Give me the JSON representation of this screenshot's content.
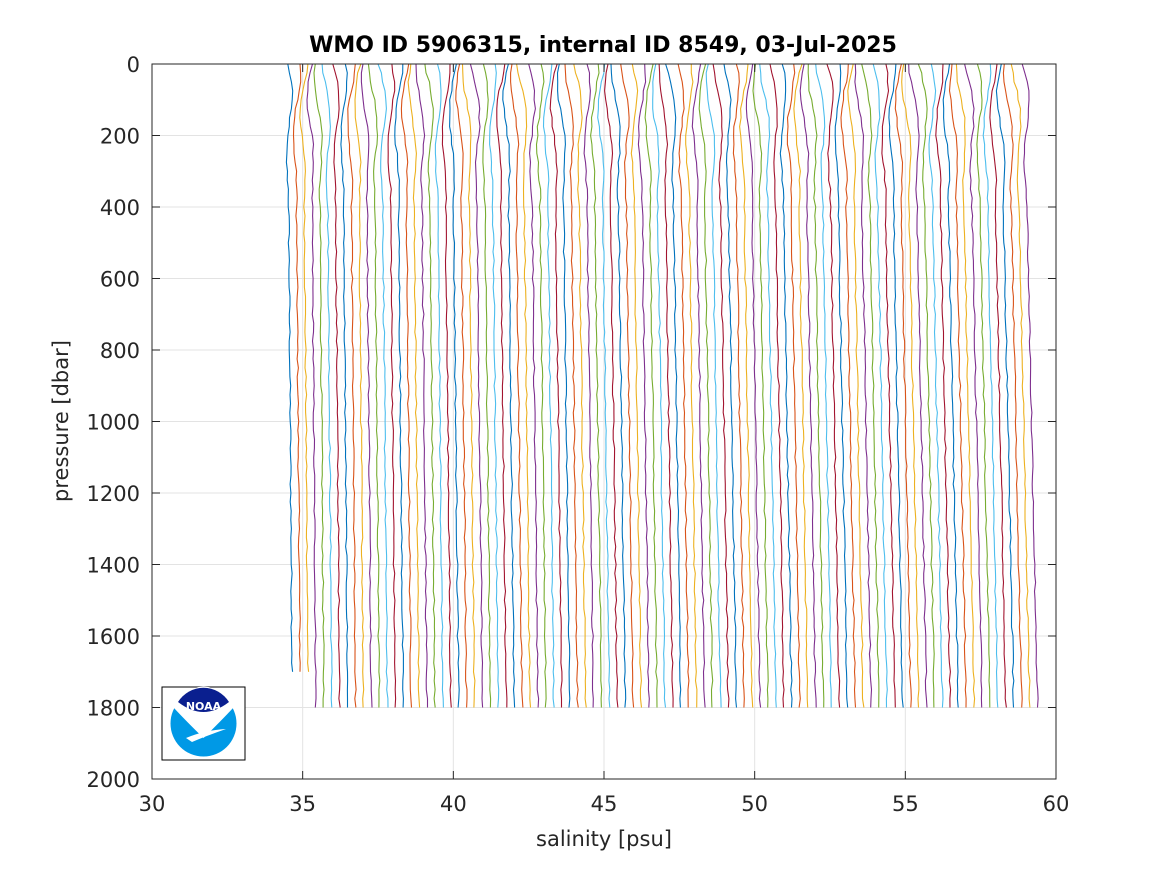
{
  "chart_data": {
    "type": "line",
    "title": "WMO ID 5906315, internal ID 8549, 03-Jul-2025",
    "xlabel": "salinity [psu]",
    "ylabel": "pressure [dbar]",
    "xlim": [
      30,
      60
    ],
    "ylim": [
      0,
      2000
    ],
    "y_reversed": true,
    "grid": true,
    "x_ticks": [
      "30",
      "35",
      "40",
      "45",
      "50",
      "55",
      "60"
    ],
    "y_ticks": [
      "0",
      "200",
      "400",
      "600",
      "800",
      "1000",
      "1200",
      "1400",
      "1600",
      "1800",
      "2000"
    ],
    "series_colors": [
      "#0072BD",
      "#D95319",
      "#EDB120",
      "#7E2F8E",
      "#77AC30",
      "#4DBEEE",
      "#A2142F"
    ],
    "profiles": {
      "count": 95,
      "surface_salinity_first": 34.5,
      "surface_salinity_last": 58.5,
      "salinity_offset_per_profile": 0.26,
      "max_pressure_dbar": [
        1700,
        1800
      ],
      "deep_salinity_first": 34.7,
      "deep_salinity_last": 58.8
    },
    "logo": {
      "name": "noaa-logo",
      "text": "NOAA",
      "position": "bottom-left"
    }
  }
}
